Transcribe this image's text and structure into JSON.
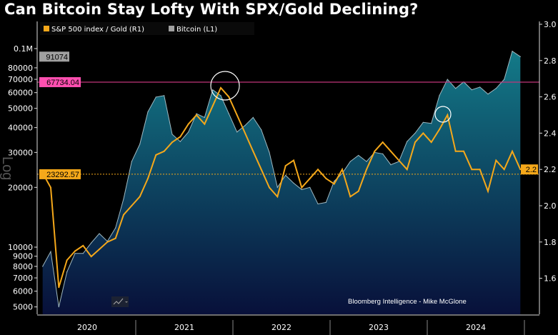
{
  "title": "Can Bitcoin Stay Lofty With SPX/Gold Declining?",
  "credit": "Bloomberg Intelligence - Mike McGlone",
  "scale_watermark": "Log",
  "colors": {
    "bitcoin_top": "#137a88",
    "bitcoin_bottom": "#08103a",
    "ratio": "#f5a81a",
    "reference_line": "#c0357a",
    "last_btc_label": "#a0a0a0",
    "magenta_label": "#ff4fb0"
  },
  "chart_data": {
    "type": "area+line",
    "title": "Can Bitcoin Stay Lofty With SPX/Gold Declining?",
    "legend": {
      "placement": "top-left",
      "items": [
        {
          "name": "S&P 500 index / Gold (R1)",
          "color": "#f5a81a"
        },
        {
          "name": "Bitcoin (L1)",
          "color": "#a0a0a0"
        }
      ]
    },
    "x_ticks": [
      "2020",
      "2021",
      "2022",
      "2023",
      "2024"
    ],
    "x": [
      "2020-01",
      "2020-02",
      "2020-03",
      "2020-04",
      "2020-05",
      "2020-06",
      "2020-07",
      "2020-08",
      "2020-09",
      "2020-10",
      "2020-11",
      "2020-12",
      "2021-01",
      "2021-02",
      "2021-03",
      "2021-04",
      "2021-05",
      "2021-06",
      "2021-07",
      "2021-08",
      "2021-09",
      "2021-10",
      "2021-11",
      "2021-12",
      "2022-01",
      "2022-02",
      "2022-03",
      "2022-04",
      "2022-05",
      "2022-06",
      "2022-07",
      "2022-08",
      "2022-09",
      "2022-10",
      "2022-11",
      "2022-12",
      "2023-01",
      "2023-02",
      "2023-03",
      "2023-04",
      "2023-05",
      "2023-06",
      "2023-07",
      "2023-08",
      "2023-09",
      "2023-10",
      "2023-11",
      "2023-12",
      "2024-01",
      "2024-02",
      "2024-03",
      "2024-04",
      "2024-05",
      "2024-06",
      "2024-07",
      "2024-08",
      "2024-09",
      "2024-10",
      "2024-11",
      "2024-12"
    ],
    "series": [
      {
        "name": "Bitcoin (L1)",
        "axis": "left",
        "values": [
          8000,
          9500,
          5000,
          7500,
          9300,
          9300,
          10500,
          11700,
          10700,
          12500,
          17500,
          27000,
          33000,
          48000,
          57000,
          58000,
          37000,
          34000,
          38000,
          47000,
          45000,
          62000,
          58000,
          47000,
          38000,
          41000,
          45000,
          39000,
          30000,
          20000,
          23000,
          21000,
          19500,
          20000,
          16500,
          16800,
          21500,
          23500,
          27000,
          29000,
          27000,
          30000,
          29500,
          26000,
          27000,
          34000,
          37500,
          42500,
          42000,
          58000,
          70000,
          63000,
          68000,
          62000,
          64000,
          59000,
          63000,
          70000,
          97000,
          91074
        ]
      },
      {
        "name": "S&P 500 index / Gold (R1)",
        "axis": "right",
        "values": [
          2.18,
          2.1,
          1.55,
          1.7,
          1.75,
          1.78,
          1.72,
          1.76,
          1.8,
          1.82,
          1.95,
          2.0,
          2.05,
          2.15,
          2.28,
          2.3,
          2.35,
          2.38,
          2.45,
          2.5,
          2.45,
          2.55,
          2.65,
          2.6,
          2.5,
          2.4,
          2.3,
          2.2,
          2.1,
          2.05,
          2.22,
          2.25,
          2.1,
          2.15,
          2.2,
          2.15,
          2.12,
          2.2,
          2.05,
          2.08,
          2.2,
          2.3,
          2.35,
          2.3,
          2.25,
          2.2,
          2.35,
          2.4,
          2.35,
          2.42,
          2.5,
          2.3,
          2.3,
          2.2,
          2.2,
          2.08,
          2.25,
          2.2,
          2.3,
          2.2
        ]
      }
    ],
    "left_axis": {
      "scale": "log",
      "ticks": [
        "5000",
        "6000",
        "7000",
        "8000",
        "9000",
        "10000",
        "20000",
        "30000",
        "40000",
        "50000",
        "60000",
        "70000",
        "80000",
        "0.1M"
      ],
      "range": [
        4700,
        110000
      ]
    },
    "right_axis": {
      "ticks": [
        "1.6",
        "1.8",
        "2.0",
        "2.2",
        "2.4",
        "2.6",
        "2.8",
        "3.0"
      ],
      "range": [
        1.47,
        3.0
      ]
    },
    "annotations": {
      "bitcoin_last": "91074",
      "ratio_last": "2.2",
      "magenta_level": "67734.04",
      "orange_level": "23292.57"
    }
  }
}
